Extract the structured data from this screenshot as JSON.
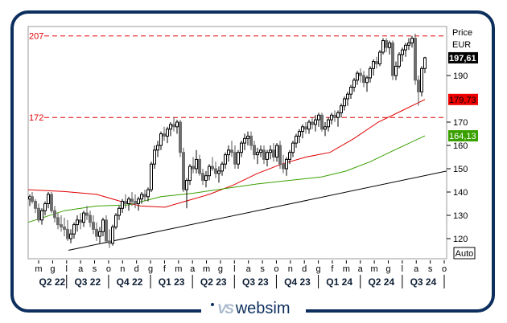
{
  "chart_data": {
    "type": "candlestick",
    "title": "",
    "currency": "EUR",
    "ylabel": "Price",
    "ylim": [
      115,
      211
    ],
    "yticks": [
      120,
      130,
      140,
      150,
      160,
      170,
      190
    ],
    "month_ticks": [
      "m",
      "g",
      "l",
      "a",
      "s",
      "o",
      "n",
      "d",
      "g",
      "f",
      "m",
      "a",
      "m",
      "g",
      "l",
      "a",
      "s",
      "o",
      "n",
      "d",
      "g",
      "f",
      "m",
      "a",
      "m",
      "g",
      "l",
      "a",
      "s",
      "o"
    ],
    "quarter_labels": [
      "Q2 22",
      "Q3 22",
      "Q4 22",
      "Q1 23",
      "Q2 23",
      "Q3 23",
      "Q4 23",
      "Q1 24",
      "Q2 24",
      "Q3 24"
    ],
    "horizontal_levels": [
      {
        "value": 207,
        "label": "207",
        "color": "#e00000",
        "style": "dashed"
      },
      {
        "value": 172,
        "label": "172",
        "color": "#e00000",
        "style": "dashed"
      }
    ],
    "last_price": {
      "value": "197,61",
      "bg": "#000000",
      "fg": "#ffffff"
    },
    "series": [
      {
        "name": "Moving average (red)",
        "color": "#e00000",
        "last": "179,73",
        "points": [
          [
            35,
            141
          ],
          [
            80,
            140.2
          ],
          [
            120,
            139
          ],
          [
            150,
            136
          ],
          [
            175,
            134
          ],
          [
            205,
            133.5
          ],
          [
            230,
            136
          ],
          [
            260,
            139
          ],
          [
            290,
            143
          ],
          [
            320,
            148
          ],
          [
            350,
            152
          ],
          [
            380,
            155
          ],
          [
            410,
            157
          ],
          [
            440,
            163
          ],
          [
            470,
            170
          ],
          [
            500,
            175
          ],
          [
            528,
            179.73
          ]
        ]
      },
      {
        "name": "Moving average (green)",
        "color": "#3aa000",
        "last": "164,13",
        "points": [
          [
            35,
            127
          ],
          [
            80,
            132
          ],
          [
            120,
            134
          ],
          [
            160,
            134.5
          ],
          [
            200,
            138
          ],
          [
            240,
            139.5
          ],
          [
            280,
            141.5
          ],
          [
            320,
            143.5
          ],
          [
            360,
            145
          ],
          [
            400,
            146.5
          ],
          [
            430,
            149
          ],
          [
            460,
            153
          ],
          [
            490,
            158
          ],
          [
            528,
            164.13
          ]
        ]
      },
      {
        "name": "Trend line",
        "color": "#000000",
        "points": [
          [
            85,
            115
          ],
          [
            555,
            149
          ]
        ]
      }
    ],
    "candles_note": "approximate weekly OHLC [x_px, open, high, low, close]",
    "candles": [
      [
        37,
        137,
        139,
        134,
        138
      ],
      [
        40,
        138,
        140,
        135,
        136
      ],
      [
        44,
        136,
        137,
        131,
        133
      ],
      [
        48,
        133,
        135,
        127,
        128
      ],
      [
        52,
        128,
        133,
        126,
        132
      ],
      [
        56,
        132,
        136,
        130,
        135
      ],
      [
        60,
        135,
        140,
        133,
        139
      ],
      [
        64,
        139,
        140,
        131,
        132
      ],
      [
        68,
        132,
        134,
        127,
        129
      ],
      [
        72,
        129,
        131,
        124,
        126
      ],
      [
        76,
        126,
        130,
        123,
        125
      ],
      [
        80,
        125,
        129,
        121,
        124
      ],
      [
        84,
        124,
        128,
        119,
        120
      ],
      [
        88,
        120,
        124,
        118,
        122
      ],
      [
        92,
        122,
        127,
        120,
        126
      ],
      [
        96,
        126,
        130,
        123,
        128
      ],
      [
        100,
        128,
        131,
        124,
        127
      ],
      [
        104,
        127,
        132,
        125,
        131
      ],
      [
        108,
        131,
        134,
        128,
        130
      ],
      [
        112,
        130,
        132,
        125,
        127
      ],
      [
        116,
        127,
        130,
        122,
        124
      ],
      [
        120,
        124,
        127,
        119,
        121
      ],
      [
        124,
        121,
        125,
        118,
        123
      ],
      [
        128,
        123,
        129,
        121,
        128
      ],
      [
        132,
        128,
        130,
        118,
        119
      ],
      [
        136,
        119,
        124,
        116,
        118
      ],
      [
        140,
        118,
        126,
        117,
        125
      ],
      [
        144,
        125,
        131,
        124,
        130
      ],
      [
        148,
        130,
        134,
        128,
        133
      ],
      [
        152,
        133,
        137,
        131,
        136
      ],
      [
        156,
        136,
        139,
        133,
        135
      ],
      [
        160,
        135,
        138,
        132,
        137
      ],
      [
        164,
        137,
        140,
        134,
        136
      ],
      [
        168,
        136,
        139,
        133,
        135
      ],
      [
        172,
        135,
        138,
        132,
        137
      ],
      [
        176,
        137,
        140,
        135,
        139
      ],
      [
        180,
        139,
        141,
        136,
        138
      ],
      [
        184,
        138,
        142,
        136,
        141
      ],
      [
        188,
        141,
        153,
        140,
        152
      ],
      [
        192,
        152,
        160,
        150,
        158
      ],
      [
        196,
        158,
        162,
        155,
        160
      ],
      [
        200,
        160,
        166,
        158,
        165
      ],
      [
        204,
        165,
        168,
        162,
        164
      ],
      [
        208,
        164,
        168,
        161,
        167
      ],
      [
        212,
        167,
        170,
        164,
        169
      ],
      [
        216,
        169,
        172,
        166,
        168
      ],
      [
        220,
        168,
        171,
        165,
        170
      ],
      [
        224,
        170,
        171,
        155,
        157
      ],
      [
        228,
        157,
        159,
        140,
        141
      ],
      [
        232,
        141,
        146,
        133,
        145
      ],
      [
        236,
        145,
        152,
        143,
        151
      ],
      [
        240,
        151,
        155,
        148,
        150
      ],
      [
        244,
        150,
        158,
        148,
        154
      ],
      [
        248,
        154,
        156,
        147,
        148
      ],
      [
        252,
        148,
        150,
        143,
        145
      ],
      [
        256,
        145,
        149,
        142,
        147
      ],
      [
        260,
        147,
        152,
        145,
        151
      ],
      [
        264,
        151,
        155,
        149,
        150
      ],
      [
        268,
        150,
        153,
        146,
        148
      ],
      [
        272,
        148,
        151,
        144,
        149
      ],
      [
        276,
        149,
        153,
        147,
        152
      ],
      [
        280,
        152,
        157,
        150,
        156
      ],
      [
        284,
        156,
        160,
        153,
        158
      ],
      [
        288,
        158,
        162,
        155,
        157
      ],
      [
        292,
        157,
        160,
        150,
        152
      ],
      [
        296,
        152,
        158,
        150,
        157
      ],
      [
        300,
        157,
        162,
        155,
        161
      ],
      [
        304,
        161,
        165,
        158,
        163
      ],
      [
        308,
        163,
        166,
        160,
        164
      ],
      [
        312,
        164,
        166,
        158,
        160
      ],
      [
        316,
        160,
        162,
        154,
        156
      ],
      [
        320,
        156,
        159,
        152,
        157
      ],
      [
        324,
        157,
        160,
        155,
        158
      ],
      [
        328,
        158,
        160,
        152,
        154
      ],
      [
        332,
        154,
        158,
        151,
        157
      ],
      [
        336,
        157,
        160,
        154,
        158
      ],
      [
        340,
        158,
        161,
        153,
        155
      ],
      [
        344,
        155,
        161,
        153,
        160
      ],
      [
        348,
        160,
        162,
        150,
        152
      ],
      [
        352,
        152,
        156,
        148,
        150
      ],
      [
        356,
        150,
        155,
        147,
        154
      ],
      [
        360,
        154,
        158,
        152,
        157
      ],
      [
        364,
        157,
        162,
        155,
        161
      ],
      [
        368,
        161,
        165,
        159,
        164
      ],
      [
        372,
        164,
        167,
        161,
        166
      ],
      [
        376,
        166,
        169,
        163,
        168
      ],
      [
        380,
        168,
        170,
        165,
        167
      ],
      [
        384,
        167,
        171,
        165,
        170
      ],
      [
        388,
        170,
        172,
        167,
        169
      ],
      [
        392,
        169,
        173,
        166,
        171
      ],
      [
        396,
        171,
        174,
        168,
        173
      ],
      [
        400,
        173,
        174,
        166,
        167
      ],
      [
        404,
        167,
        170,
        164,
        168
      ],
      [
        408,
        168,
        172,
        166,
        171
      ],
      [
        412,
        171,
        174,
        169,
        173
      ],
      [
        416,
        173,
        175,
        170,
        172
      ],
      [
        420,
        172,
        175,
        168,
        174
      ],
      [
        424,
        174,
        178,
        172,
        177
      ],
      [
        428,
        177,
        181,
        175,
        180
      ],
      [
        432,
        180,
        183,
        177,
        182
      ],
      [
        436,
        182,
        186,
        180,
        185
      ],
      [
        440,
        185,
        189,
        183,
        188
      ],
      [
        444,
        188,
        192,
        186,
        191
      ],
      [
        448,
        191,
        193,
        187,
        190
      ],
      [
        452,
        190,
        192,
        185,
        187
      ],
      [
        456,
        187,
        190,
        183,
        189
      ],
      [
        460,
        189,
        194,
        187,
        193
      ],
      [
        464,
        193,
        197,
        190,
        196
      ],
      [
        468,
        196,
        198,
        193,
        195
      ],
      [
        472,
        195,
        201,
        194,
        200
      ],
      [
        476,
        200,
        206,
        199,
        205
      ],
      [
        480,
        205,
        206,
        200,
        202
      ],
      [
        484,
        202,
        205,
        199,
        204
      ],
      [
        488,
        204,
        205,
        188,
        190
      ],
      [
        492,
        190,
        196,
        188,
        194
      ],
      [
        496,
        194,
        200,
        193,
        199
      ],
      [
        500,
        199,
        202,
        196,
        201
      ],
      [
        504,
        201,
        204,
        198,
        203
      ],
      [
        508,
        203,
        206,
        201,
        204
      ],
      [
        512,
        204,
        207,
        202,
        206
      ],
      [
        516,
        206,
        208,
        186,
        188
      ],
      [
        520,
        188,
        190,
        177,
        183
      ],
      [
        524,
        183,
        194,
        181,
        193
      ],
      [
        528,
        193,
        198,
        191,
        197.61
      ]
    ],
    "legend": [],
    "grid": false,
    "auto_label": "Auto"
  },
  "axis": {
    "price_label": "Price",
    "currency_label": "EUR",
    "auto_button": "Auto"
  },
  "badges": {
    "last_price": "197,61",
    "ma_red": "179,73",
    "ma_green": "164,13"
  },
  "levels": {
    "upper": "207",
    "lower": "172"
  },
  "brand": {
    "name": "websim",
    "mark": "VS",
    "color": "#0d2f5e"
  }
}
